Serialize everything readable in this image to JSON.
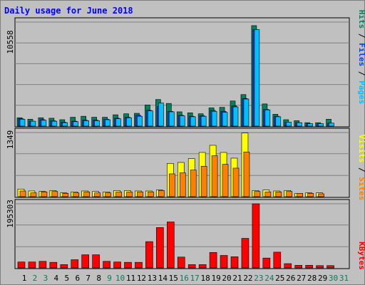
{
  "chart_data": [
    {
      "type": "bar",
      "title": "Daily usage for June 2018",
      "categories": [
        "1",
        "2",
        "3",
        "4",
        "5",
        "6",
        "7",
        "8",
        "9",
        "10",
        "11",
        "12",
        "13",
        "14",
        "15",
        "16",
        "17",
        "18",
        "19",
        "20",
        "21",
        "22",
        "23",
        "24",
        "25",
        "26",
        "27",
        "28",
        "29",
        "30",
        "31"
      ],
      "weekend_days": [
        "2",
        "3",
        "9",
        "10",
        "16",
        "17",
        "23",
        "24",
        "30",
        "31"
      ],
      "ylabel_max": "10558",
      "ylim": [
        0,
        10558
      ],
      "legend": [
        "Pages",
        "Files",
        "Hits"
      ],
      "colors": {
        "hits": "#00805c",
        "files": "#0040ff",
        "pages": "#00c0ff"
      },
      "series": [
        {
          "name": "Hits",
          "values": [
            850,
            700,
            850,
            800,
            650,
            900,
            1000,
            900,
            900,
            1150,
            1250,
            1300,
            2150,
            2700,
            2300,
            1450,
            1350,
            1250,
            1850,
            1900,
            2550,
            3200,
            10200,
            2250,
            1200,
            650,
            550,
            350,
            350,
            700,
            0
          ]
        },
        {
          "name": "Files",
          "values": [
            750,
            500,
            650,
            550,
            400,
            500,
            600,
            600,
            700,
            800,
            900,
            1100,
            1600,
            2000,
            1500,
            1100,
            1000,
            1050,
            1600,
            1500,
            2050,
            2800,
            9800,
            1700,
            1000,
            400,
            350,
            250,
            250,
            300,
            0
          ]
        },
        {
          "name": "Pages",
          "values": [
            700,
            500,
            600,
            500,
            350,
            450,
            550,
            550,
            650,
            750,
            850,
            1000,
            1550,
            2350,
            1450,
            1050,
            950,
            1000,
            1500,
            1400,
            1950,
            2750,
            9800,
            1650,
            950,
            400,
            350,
            250,
            250,
            300,
            0
          ]
        }
      ]
    },
    {
      "type": "bar",
      "categories": [
        "1",
        "2",
        "3",
        "4",
        "5",
        "6",
        "7",
        "8",
        "9",
        "10",
        "11",
        "12",
        "13",
        "14",
        "15",
        "16",
        "17",
        "18",
        "19",
        "20",
        "21",
        "22",
        "23",
        "24",
        "25",
        "26",
        "27",
        "28",
        "29",
        "30",
        "31"
      ],
      "ylabel_max": "1349",
      "ylim": [
        0,
        1349
      ],
      "legend": [
        "Sites",
        "Visits"
      ],
      "colors": {
        "visits": "#ffff00",
        "sites": "#ff8000"
      },
      "series": [
        {
          "name": "Visits",
          "values": [
            160,
            120,
            110,
            130,
            80,
            100,
            120,
            110,
            100,
            130,
            130,
            120,
            120,
            140,
            700,
            720,
            800,
            930,
            1080,
            930,
            810,
            1340,
            130,
            140,
            120,
            130,
            70,
            80,
            80,
            0,
            0
          ]
        },
        {
          "name": "Sites",
          "values": [
            120,
            80,
            100,
            110,
            70,
            80,
            100,
            80,
            80,
            100,
            100,
            100,
            100,
            130,
            480,
            500,
            560,
            640,
            860,
            680,
            600,
            940,
            110,
            100,
            100,
            110,
            70,
            70,
            60,
            0,
            0
          ]
        }
      ]
    },
    {
      "type": "bar",
      "categories": [
        "1",
        "2",
        "3",
        "4",
        "5",
        "6",
        "7",
        "8",
        "9",
        "10",
        "11",
        "12",
        "13",
        "14",
        "15",
        "16",
        "17",
        "18",
        "19",
        "20",
        "21",
        "22",
        "23",
        "24",
        "25",
        "26",
        "27",
        "28",
        "29",
        "30",
        "31"
      ],
      "ylabel_max": "195303",
      "ylim": [
        0,
        195303
      ],
      "legend": [
        "KBytes"
      ],
      "colors": {
        "kbytes": "#ff0000"
      },
      "series": [
        {
          "name": "KBytes",
          "values": [
            18000,
            18000,
            20000,
            17000,
            10000,
            25000,
            40000,
            40000,
            20000,
            18000,
            17000,
            17000,
            80000,
            123000,
            140000,
            33000,
            10000,
            10000,
            47000,
            38000,
            34000,
            90000,
            195303,
            30000,
            48000,
            13000,
            8000,
            8000,
            7000,
            7000,
            0
          ]
        }
      ]
    }
  ]
}
